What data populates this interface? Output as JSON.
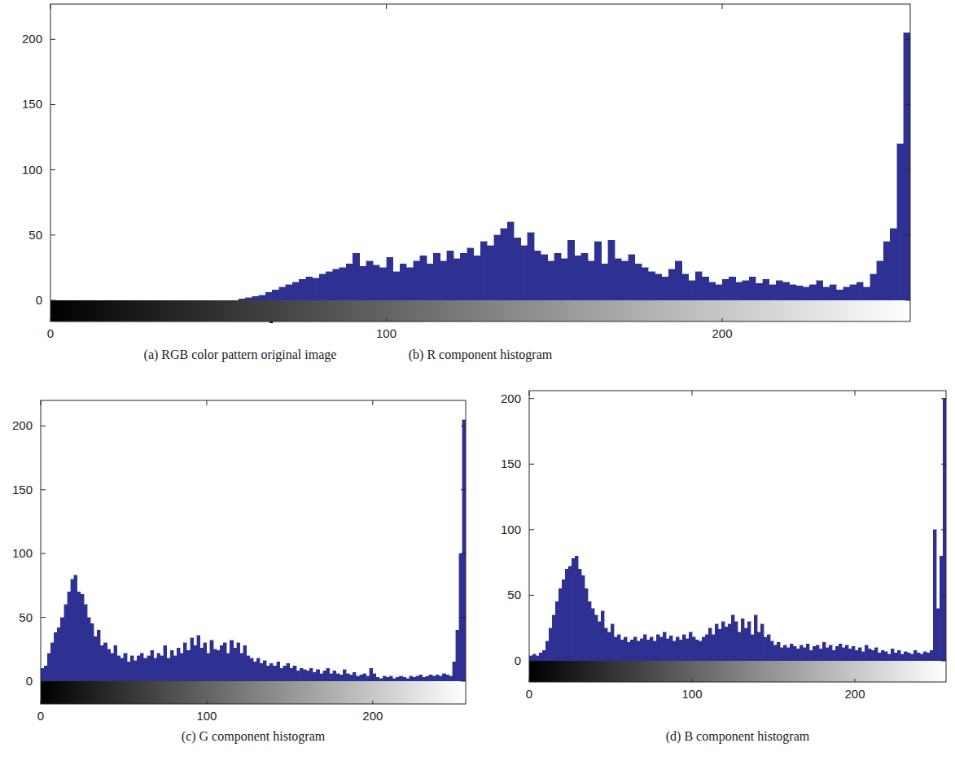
{
  "image": {
    "caption": "(a) RGB color pattern original image"
  },
  "chart_data": [
    {
      "type": "histogram",
      "title": "(b) R component histogram",
      "color": "#2e3092",
      "bins": [
        0,
        2,
        4,
        6,
        8,
        10,
        12,
        14,
        16,
        18,
        20,
        22,
        24,
        26,
        28,
        30,
        32,
        34,
        36,
        38,
        40,
        42,
        44,
        46,
        48,
        50,
        52,
        54,
        56,
        58,
        60,
        62,
        64,
        66,
        68,
        70,
        72,
        74,
        76,
        78,
        80,
        82,
        84,
        86,
        88,
        90,
        92,
        94,
        96,
        98,
        100,
        102,
        104,
        106,
        108,
        110,
        112,
        114,
        116,
        118,
        120,
        122,
        124,
        126,
        128,
        130,
        132,
        134,
        136,
        138,
        140,
        142,
        144,
        146,
        148,
        150,
        152,
        154,
        156,
        158,
        160,
        162,
        164,
        166,
        168,
        170,
        172,
        174,
        176,
        178,
        180,
        182,
        184,
        186,
        188,
        190,
        192,
        194,
        196,
        198,
        200,
        202,
        204,
        206,
        208,
        210,
        212,
        214,
        216,
        218,
        220,
        222,
        224,
        226,
        228,
        230,
        232,
        234,
        236,
        238,
        240,
        242,
        244,
        246,
        248,
        250,
        252,
        254,
        256
      ],
      "values": [
        0,
        0,
        0,
        0,
        0,
        0,
        0,
        0,
        0,
        0,
        0,
        0,
        0,
        0,
        0,
        0,
        0,
        0,
        0,
        0,
        0,
        0,
        0,
        0,
        0,
        0,
        0,
        0,
        1,
        2,
        3,
        4,
        6,
        8,
        10,
        12,
        14,
        16,
        18,
        17,
        20,
        22,
        24,
        25,
        28,
        36,
        26,
        30,
        27,
        25,
        33,
        22,
        28,
        25,
        30,
        34,
        28,
        36,
        30,
        38,
        32,
        36,
        40,
        34,
        45,
        42,
        50,
        55,
        60,
        48,
        42,
        52,
        38,
        35,
        30,
        36,
        32,
        46,
        34,
        36,
        30,
        45,
        28,
        46,
        32,
        30,
        35,
        28,
        25,
        22,
        20,
        18,
        24,
        30,
        20,
        15,
        22,
        18,
        14,
        12,
        16,
        18,
        14,
        15,
        18,
        13,
        16,
        12,
        15,
        14,
        12,
        11,
        10,
        12,
        15,
        10,
        12,
        8,
        10,
        12,
        14,
        10,
        20,
        30,
        45,
        55,
        120,
        205
      ],
      "xlim": [
        0,
        256
      ],
      "xticks": [
        0,
        100,
        200
      ],
      "ylim": [
        0,
        227
      ],
      "yticks": [
        0,
        50,
        100,
        150,
        200
      ]
    },
    {
      "type": "histogram",
      "title": "(c) G component histogram",
      "color": "#2e3092",
      "bins": [
        0,
        2,
        4,
        6,
        8,
        10,
        12,
        14,
        16,
        18,
        20,
        22,
        24,
        26,
        28,
        30,
        32,
        34,
        36,
        38,
        40,
        42,
        44,
        46,
        48,
        50,
        52,
        54,
        56,
        58,
        60,
        62,
        64,
        66,
        68,
        70,
        72,
        74,
        76,
        78,
        80,
        82,
        84,
        86,
        88,
        90,
        92,
        94,
        96,
        98,
        100,
        102,
        104,
        106,
        108,
        110,
        112,
        114,
        116,
        118,
        120,
        122,
        124,
        126,
        128,
        130,
        132,
        134,
        136,
        138,
        140,
        142,
        144,
        146,
        148,
        150,
        152,
        154,
        156,
        158,
        160,
        162,
        164,
        166,
        168,
        170,
        172,
        174,
        176,
        178,
        180,
        182,
        184,
        186,
        188,
        190,
        192,
        194,
        196,
        198,
        200,
        202,
        204,
        206,
        208,
        210,
        212,
        214,
        216,
        218,
        220,
        222,
        224,
        226,
        228,
        230,
        232,
        234,
        236,
        238,
        240,
        242,
        244,
        246,
        248,
        250,
        252,
        254,
        256
      ],
      "values": [
        10,
        12,
        22,
        30,
        38,
        42,
        50,
        60,
        70,
        80,
        83,
        70,
        68,
        60,
        50,
        45,
        35,
        40,
        28,
        30,
        25,
        22,
        28,
        20,
        18,
        22,
        15,
        20,
        16,
        20,
        22,
        18,
        20,
        24,
        18,
        22,
        20,
        28,
        18,
        24,
        20,
        26,
        22,
        30,
        24,
        34,
        28,
        36,
        26,
        30,
        22,
        32,
        25,
        24,
        28,
        30,
        22,
        32,
        26,
        30,
        22,
        28,
        20,
        18,
        15,
        18,
        14,
        16,
        12,
        14,
        12,
        15,
        10,
        12,
        14,
        10,
        12,
        8,
        10,
        9,
        8,
        10,
        7,
        9,
        6,
        8,
        10,
        6,
        8,
        6,
        5,
        9,
        6,
        5,
        7,
        4,
        5,
        6,
        4,
        10,
        6,
        3,
        2,
        4,
        3,
        4,
        2,
        3,
        4,
        3,
        2,
        4,
        3,
        4,
        5,
        3,
        4,
        5,
        4,
        5,
        4,
        6,
        5,
        4,
        15,
        40,
        100,
        205
      ],
      "xlim": [
        0,
        256
      ],
      "xticks": [
        0,
        100,
        200
      ],
      "ylim": [
        0,
        220
      ],
      "yticks": [
        0,
        50,
        100,
        150,
        200
      ]
    },
    {
      "type": "histogram",
      "title": "(d) B component histogram",
      "color": "#2e3092",
      "bins": [
        0,
        2,
        4,
        6,
        8,
        10,
        12,
        14,
        16,
        18,
        20,
        22,
        24,
        26,
        28,
        30,
        32,
        34,
        36,
        38,
        40,
        42,
        44,
        46,
        48,
        50,
        52,
        54,
        56,
        58,
        60,
        62,
        64,
        66,
        68,
        70,
        72,
        74,
        76,
        78,
        80,
        82,
        84,
        86,
        88,
        90,
        92,
        94,
        96,
        98,
        100,
        102,
        104,
        106,
        108,
        110,
        112,
        114,
        116,
        118,
        120,
        122,
        124,
        126,
        128,
        130,
        132,
        134,
        136,
        138,
        140,
        142,
        144,
        146,
        148,
        150,
        152,
        154,
        156,
        158,
        160,
        162,
        164,
        166,
        168,
        170,
        172,
        174,
        176,
        178,
        180,
        182,
        184,
        186,
        188,
        190,
        192,
        194,
        196,
        198,
        200,
        202,
        204,
        206,
        208,
        210,
        212,
        214,
        216,
        218,
        220,
        222,
        224,
        226,
        228,
        230,
        232,
        234,
        236,
        238,
        240,
        242,
        244,
        246,
        248,
        250,
        252,
        254,
        256
      ],
      "values": [
        4,
        5,
        4,
        6,
        8,
        15,
        25,
        35,
        45,
        55,
        62,
        70,
        72,
        78,
        80,
        70,
        65,
        55,
        45,
        40,
        35,
        30,
        38,
        25,
        22,
        28,
        18,
        20,
        16,
        18,
        14,
        16,
        18,
        15,
        17,
        20,
        16,
        18,
        15,
        20,
        18,
        22,
        17,
        19,
        15,
        18,
        16,
        20,
        17,
        22,
        18,
        16,
        15,
        18,
        20,
        25,
        20,
        28,
        24,
        30,
        26,
        28,
        35,
        30,
        22,
        32,
        25,
        30,
        20,
        35,
        22,
        28,
        18,
        20,
        15,
        12,
        14,
        10,
        12,
        10,
        13,
        11,
        9,
        12,
        10,
        13,
        8,
        11,
        12,
        9,
        14,
        10,
        12,
        8,
        11,
        13,
        10,
        12,
        9,
        11,
        8,
        10,
        7,
        12,
        9,
        8,
        10,
        6,
        8,
        7,
        5,
        9,
        6,
        8,
        5,
        7,
        6,
        5,
        8,
        6,
        5,
        7,
        6,
        8,
        100,
        40,
        80,
        200
      ],
      "xlim": [
        0,
        256
      ],
      "xticks": [
        0,
        100,
        200
      ],
      "ylim": [
        0,
        206
      ],
      "yticks": [
        0,
        50,
        100,
        150,
        200
      ]
    }
  ]
}
